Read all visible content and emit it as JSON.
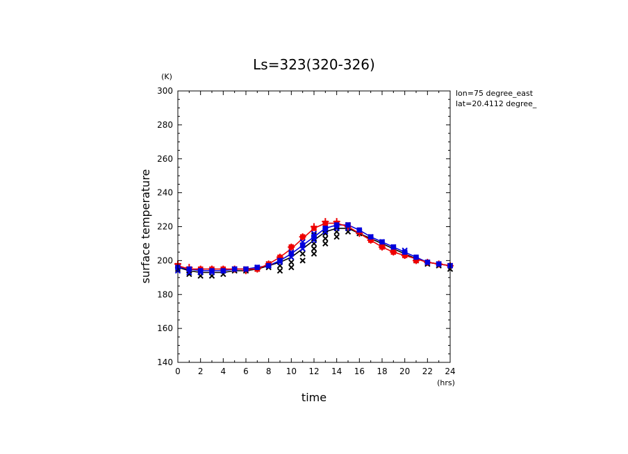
{
  "chart_data": {
    "type": "line",
    "title": "Ls=323(320-326)",
    "xlabel": "time",
    "ylabel": "surface temperature",
    "x_unit": "(hrs)",
    "y_unit": "(K)",
    "xlim": [
      0,
      24
    ],
    "ylim": [
      140,
      300
    ],
    "x_ticks": [
      0,
      2,
      4,
      6,
      8,
      10,
      12,
      14,
      16,
      18,
      20,
      22,
      24
    ],
    "y_ticks": [
      140,
      160,
      180,
      200,
      220,
      240,
      260,
      280,
      300
    ],
    "annotations": [
      "lon=75 degree_east",
      "lat=20.4112 degree_"
    ],
    "grid": false,
    "series": [
      {
        "color": "#000000",
        "style": "line",
        "x": [
          0,
          1,
          2,
          3,
          4,
          5,
          6,
          7,
          8,
          9,
          10,
          11,
          12,
          13,
          14,
          15,
          16,
          17,
          18,
          19,
          20,
          21,
          22,
          23,
          24
        ],
        "values": [
          196,
          194,
          193,
          193,
          193,
          194,
          194,
          195,
          197,
          199,
          202,
          207,
          212,
          217,
          219,
          219,
          216,
          213,
          210,
          207,
          204,
          201,
          199,
          198,
          197
        ]
      },
      {
        "color": "#0000dd",
        "style": "line",
        "x": [
          0,
          1,
          2,
          3,
          4,
          5,
          6,
          7,
          8,
          9,
          10,
          11,
          12,
          13,
          14,
          15,
          16,
          17,
          18,
          19,
          20,
          21,
          22,
          23,
          24
        ],
        "values": [
          196,
          195,
          194,
          194,
          194,
          195,
          195,
          196,
          197,
          200,
          204,
          209,
          214,
          219,
          221,
          221,
          218,
          214,
          211,
          208,
          205,
          202,
          199,
          198,
          197
        ]
      },
      {
        "color": "#ee0000",
        "style": "line",
        "x": [
          0,
          1,
          2,
          3,
          4,
          5,
          6,
          7,
          8,
          9,
          10,
          11,
          12,
          13,
          14,
          15,
          16,
          17,
          18,
          19,
          20,
          21,
          22,
          23,
          24
        ],
        "values": [
          197,
          195,
          195,
          195,
          195,
          195,
          195,
          195,
          198,
          202,
          207,
          213,
          219,
          222,
          222,
          220,
          216,
          212,
          208,
          205,
          203,
          201,
          199,
          198,
          197
        ]
      },
      {
        "color": "#000000",
        "style": "x-markers",
        "x": [
          0,
          0,
          1,
          1,
          2,
          2,
          3,
          3,
          4,
          4,
          5,
          6,
          7,
          8,
          8,
          9,
          9,
          9,
          10,
          10,
          10,
          10,
          11,
          11,
          11,
          11,
          12,
          12,
          12,
          12,
          12,
          13,
          13,
          13,
          13,
          13,
          14,
          14,
          14,
          14,
          15,
          15,
          16,
          17,
          18,
          19,
          20,
          21,
          22,
          23,
          24,
          24
        ],
        "values": [
          195,
          197,
          192,
          194,
          191,
          193,
          191,
          193,
          192,
          194,
          194,
          194,
          195,
          196,
          198,
          194,
          197,
          200,
          196,
          199,
          202,
          204,
          200,
          204,
          207,
          209,
          204,
          207,
          210,
          213,
          215,
          210,
          213,
          216,
          218,
          220,
          214,
          217,
          219,
          220,
          217,
          219,
          216,
          213,
          210,
          207,
          204,
          200,
          198,
          197,
          195,
          197
        ]
      },
      {
        "color": "#0000dd",
        "style": "x-markers",
        "x": [
          0,
          0,
          1,
          1,
          2,
          3,
          4,
          5,
          6,
          7,
          8,
          9,
          9,
          10,
          10,
          11,
          11,
          11,
          12,
          12,
          12,
          13,
          13,
          13,
          14,
          14,
          15,
          15,
          16,
          17,
          18,
          19,
          20,
          20,
          21,
          22,
          23,
          24
        ],
        "values": [
          194,
          197,
          193,
          195,
          193,
          193,
          194,
          195,
          195,
          196,
          197,
          199,
          201,
          202,
          205,
          207,
          209,
          211,
          212,
          214,
          216,
          217,
          219,
          221,
          219,
          221,
          219,
          221,
          217,
          214,
          211,
          208,
          204,
          206,
          201,
          199,
          198,
          197
        ]
      },
      {
        "color": "#ee0000",
        "style": "plus-markers",
        "x": [
          0,
          1,
          2,
          3,
          4,
          5,
          6,
          7,
          8,
          9,
          10,
          11,
          12,
          13,
          14,
          15,
          16,
          17,
          18,
          19,
          20,
          21,
          22,
          23,
          24
        ],
        "values": [
          198,
          196,
          195,
          195,
          195,
          195,
          194,
          195,
          198,
          202,
          208,
          214,
          220,
          223,
          223,
          220,
          216,
          212,
          208,
          205,
          203,
          200,
          199,
          198,
          197
        ]
      },
      {
        "color": "#ee0000",
        "style": "square-markers",
        "x": [
          0,
          1,
          2,
          3,
          4,
          5,
          6,
          7,
          8,
          9,
          10,
          11,
          12,
          13,
          14,
          15,
          16,
          17,
          18,
          19,
          20,
          21,
          22,
          23,
          24
        ],
        "values": [
          197,
          195,
          195,
          195,
          195,
          195,
          195,
          195,
          198,
          202,
          208,
          214,
          219,
          222,
          222,
          221,
          217,
          212,
          208,
          205,
          203,
          200,
          199,
          198,
          197
        ]
      },
      {
        "color": "#0000dd",
        "style": "square-markers",
        "x": [
          0,
          1,
          2,
          3,
          4,
          5,
          6,
          7,
          8,
          9,
          10,
          11,
          12,
          13,
          14,
          15,
          16,
          17,
          18,
          19,
          20,
          21,
          22,
          23,
          24
        ],
        "values": [
          196,
          195,
          194,
          194,
          194,
          195,
          195,
          196,
          197,
          200,
          204,
          209,
          214,
          219,
          221,
          221,
          218,
          214,
          211,
          208,
          205,
          202,
          199,
          198,
          197
        ]
      }
    ]
  }
}
